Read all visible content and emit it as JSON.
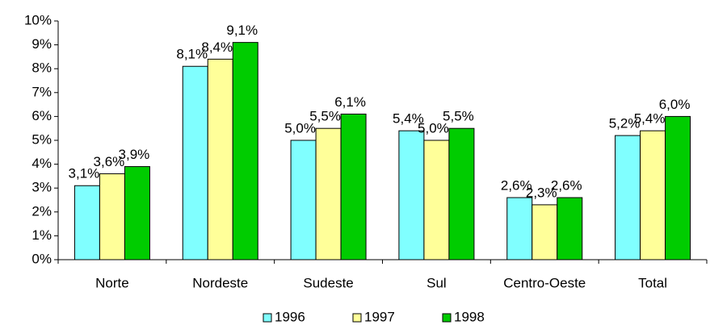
{
  "chart_data": {
    "type": "bar",
    "categories": [
      "Norte",
      "Nordeste",
      "Sudeste",
      "Sul",
      "Centro-Oeste",
      "Total"
    ],
    "series": [
      {
        "name": "1996",
        "color": "#80ffff",
        "values": [
          3.1,
          8.1,
          5.0,
          5.4,
          2.6,
          5.2
        ],
        "value_labels": [
          "3,1%",
          "8,1%",
          "5,0%",
          "5,4%",
          "2,6%",
          "5,2%"
        ]
      },
      {
        "name": "1997",
        "color": "#ffff99",
        "values": [
          3.6,
          8.4,
          5.5,
          5.0,
          2.3,
          5.4
        ],
        "value_labels": [
          "3,6%",
          "8,4%",
          "5,5%",
          "5,0%",
          "2,3%",
          "5,4%"
        ]
      },
      {
        "name": "1998",
        "color": "#00cc00",
        "values": [
          3.9,
          9.1,
          6.1,
          5.5,
          2.6,
          6.0
        ],
        "value_labels": [
          "3,9%",
          "9,1%",
          "6,1%",
          "5,5%",
          "2,6%",
          "6,0%"
        ]
      }
    ],
    "ylim": [
      0,
      10
    ],
    "yticks": [
      {
        "value": 0,
        "label": "0%"
      },
      {
        "value": 1,
        "label": "1%"
      },
      {
        "value": 2,
        "label": "2%"
      },
      {
        "value": 3,
        "label": "3%"
      },
      {
        "value": 4,
        "label": "4%"
      },
      {
        "value": 5,
        "label": "5%"
      },
      {
        "value": 6,
        "label": "6%"
      },
      {
        "value": 7,
        "label": "7%"
      },
      {
        "value": 8,
        "label": "8%"
      },
      {
        "value": 9,
        "label": "9%"
      },
      {
        "value": 10,
        "label": "10%"
      }
    ],
    "legend": "bottom"
  }
}
